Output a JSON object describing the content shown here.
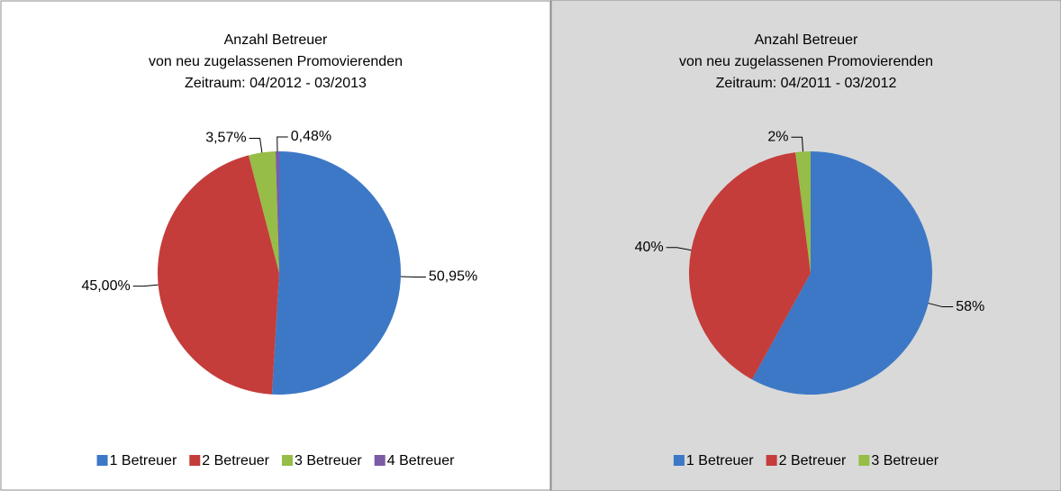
{
  "chart_data": [
    {
      "type": "pie",
      "title": [
        "Anzahl Betreuer",
        "von neu zugelassenen Promovierenden"
      ],
      "subtitle": "Zeitraum: 04/2012 - 03/2013",
      "categories": [
        "1 Betreuer",
        "2 Betreuer",
        "3 Betreuer",
        "4 Betreuer"
      ],
      "values": [
        50.95,
        45.0,
        3.57,
        0.48
      ],
      "value_labels": [
        "50,95%",
        "45,00%",
        "3,57%",
        "0,48%"
      ],
      "colors": [
        "#3d78c6",
        "#c43d3a",
        "#96bd47",
        "#7b5ba6"
      ],
      "background": "#ffffff",
      "legend": "bottom"
    },
    {
      "type": "pie",
      "title": [
        "Anzahl Betreuer",
        "von neu zugelassenen Promovierenden"
      ],
      "subtitle": "Zeitraum: 04/2011 - 03/2012",
      "categories": [
        "1 Betreuer",
        "2 Betreuer",
        "3 Betreuer"
      ],
      "values": [
        58,
        40,
        2
      ],
      "value_labels": [
        "58%",
        "40%",
        "2%"
      ],
      "colors": [
        "#3d78c6",
        "#c43d3a",
        "#96bd47"
      ],
      "background": "#d9d9d9",
      "legend": "bottom"
    }
  ]
}
